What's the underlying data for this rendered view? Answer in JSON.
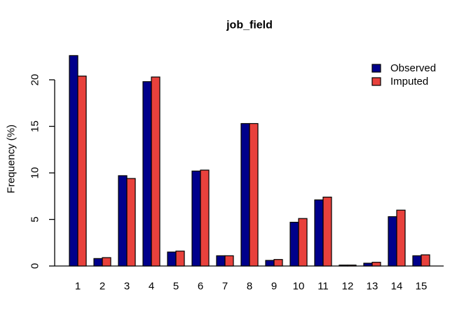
{
  "window": {
    "background": "#FFFFFF"
  },
  "chart_data": {
    "type": "bar",
    "title": "job_field",
    "xlabel": "",
    "ylabel": "Frequency (%)",
    "categories": [
      "1",
      "2",
      "3",
      "4",
      "5",
      "6",
      "7",
      "8",
      "9",
      "10",
      "11",
      "12",
      "13",
      "14",
      "15"
    ],
    "series": [
      {
        "name": "Observed",
        "color": "#00008B",
        "values": [
          22.6,
          0.8,
          9.7,
          19.8,
          1.5,
          10.2,
          1.1,
          15.3,
          0.6,
          4.7,
          7.1,
          0.1,
          0.3,
          5.3,
          1.1
        ]
      },
      {
        "name": "Imputed",
        "color": "#E8413C",
        "values": [
          20.4,
          0.9,
          9.4,
          20.3,
          1.6,
          10.3,
          1.1,
          15.3,
          0.7,
          5.1,
          7.4,
          0.1,
          0.4,
          6.0,
          1.2
        ]
      }
    ],
    "yticks": [
      "0",
      "5",
      "10",
      "15",
      "20"
    ],
    "ylim": [
      0,
      23.5
    ],
    "grid": false,
    "legend_position": "top-right",
    "legend_labels": [
      "Observed",
      "Imputed"
    ],
    "bar_border_color": "#000000",
    "axis_color": "#000000",
    "text_color": "#000000"
  }
}
